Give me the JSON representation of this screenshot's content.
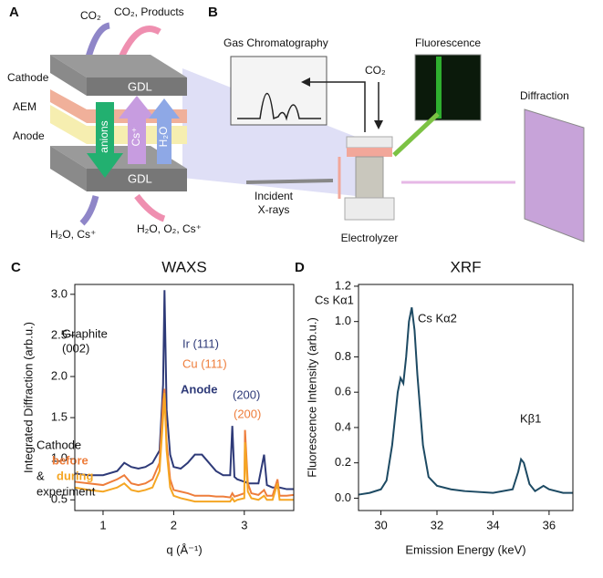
{
  "diagram_a": {
    "label": "A",
    "texts": [
      "CO₂",
      "CO₂, Products",
      "Cathode",
      "AEM",
      "Anode",
      "GDL",
      "GDL",
      "anions",
      "Cs⁺",
      "H₂O",
      "H₂O, Cs⁺",
      "H₂O, O₂, Cs⁺"
    ]
  },
  "diagram_b": {
    "label": "B",
    "texts": [
      "Gas Chromatography",
      "Fluorescence",
      "CO₂",
      "Diffraction",
      "Incident",
      "X-rays",
      "Electrolyzer"
    ]
  },
  "chart_data": [
    {
      "type": "line",
      "panel_label": "C",
      "title": "WAXS",
      "x_label": "q (Å⁻¹)",
      "y_label": "Integrated Diffraction (arb.u.)",
      "xlim": [
        0.6,
        3.7
      ],
      "xticks": [
        1,
        2,
        3
      ],
      "ylim": [
        0.37,
        3.12
      ],
      "yticks": [
        0.5,
        {
          "value": 1,
          "label": "1.0"
        },
        1.5,
        {
          "value": 2,
          "label": "2.0"
        },
        2.5,
        {
          "value": 3,
          "label": "3.0"
        }
      ],
      "x": [
        0.6,
        0.8,
        1.0,
        1.2,
        1.3,
        1.4,
        1.5,
        1.6,
        1.7,
        1.8,
        1.85,
        1.87,
        1.9,
        1.95,
        2.0,
        2.1,
        2.2,
        2.3,
        2.4,
        2.5,
        2.6,
        2.7,
        2.8,
        2.83,
        2.86,
        2.9,
        3.0,
        3.01,
        3.05,
        3.1,
        3.2,
        3.28,
        3.32,
        3.4,
        3.47,
        3.5,
        3.6,
        3.7
      ],
      "series": [
        {
          "name": "Anode",
          "color": "#2e3a78",
          "values": [
            0.82,
            0.8,
            0.8,
            0.85,
            0.95,
            0.9,
            0.88,
            0.9,
            0.95,
            1.1,
            1.9,
            3.05,
            1.6,
            1.05,
            0.9,
            0.88,
            0.95,
            1.05,
            1.05,
            0.95,
            0.85,
            0.8,
            0.8,
            1.4,
            0.78,
            0.75,
            0.72,
            0.72,
            0.7,
            0.7,
            0.7,
            1.05,
            0.68,
            0.65,
            0.65,
            0.65,
            0.63,
            0.63
          ]
        },
        {
          "name": "before",
          "color": "#ee7d3b",
          "values": [
            0.72,
            0.7,
            0.68,
            0.75,
            0.8,
            0.7,
            0.68,
            0.7,
            0.75,
            0.95,
            1.7,
            1.85,
            1.2,
            0.75,
            0.62,
            0.6,
            0.58,
            0.55,
            0.55,
            0.55,
            0.54,
            0.54,
            0.53,
            0.58,
            0.54,
            0.55,
            0.58,
            1.35,
            0.7,
            0.58,
            0.56,
            0.62,
            0.55,
            0.55,
            0.75,
            0.55,
            0.55,
            0.56
          ]
        },
        {
          "name": "during",
          "color": "#f5a623",
          "values": [
            0.65,
            0.62,
            0.6,
            0.65,
            0.7,
            0.62,
            0.6,
            0.62,
            0.65,
            0.85,
            1.5,
            1.8,
            1.1,
            0.65,
            0.55,
            0.52,
            0.5,
            0.48,
            0.48,
            0.48,
            0.48,
            0.48,
            0.48,
            0.52,
            0.48,
            0.5,
            0.52,
            1.2,
            0.6,
            0.52,
            0.5,
            0.55,
            0.5,
            0.5,
            0.7,
            0.5,
            0.5,
            0.5
          ]
        }
      ],
      "annotations": [
        "Graphite",
        "(002)",
        "Ir (111)",
        "Cu (111)",
        "(200)",
        "(200)",
        "Cathode",
        "&",
        "experiment"
      ]
    },
    {
      "type": "line",
      "panel_label": "D",
      "title": "XRF",
      "x_label": "Emission Energy (keV)",
      "y_label": "Fluorescence Intensity (arb.u.)",
      "xlim": [
        29.2,
        36.85
      ],
      "xticks": [
        30,
        32,
        34,
        36
      ],
      "ylim": [
        -0.07,
        1.21
      ],
      "yticks": [
        {
          "value": 0,
          "label": "0.0"
        },
        0.2,
        0.4,
        0.6,
        0.8,
        {
          "value": 1,
          "label": "1.0"
        },
        1.2
      ],
      "x": [
        29.2,
        29.6,
        30.0,
        30.2,
        30.4,
        30.5,
        30.6,
        30.7,
        30.8,
        30.9,
        31.0,
        31.1,
        31.2,
        31.3,
        31.5,
        31.7,
        32.0,
        32.5,
        33.0,
        34.0,
        34.7,
        34.9,
        35.0,
        35.1,
        35.3,
        35.5,
        35.8,
        36.0,
        36.5,
        36.85
      ],
      "series": [
        {
          "name": "XRF",
          "color": "#1d4a63",
          "values": [
            0.02,
            0.03,
            0.05,
            0.1,
            0.3,
            0.45,
            0.6,
            0.68,
            0.65,
            0.8,
            1.0,
            1.08,
            0.95,
            0.7,
            0.3,
            0.12,
            0.07,
            0.05,
            0.04,
            0.03,
            0.05,
            0.15,
            0.22,
            0.2,
            0.08,
            0.04,
            0.07,
            0.05,
            0.03,
            0.03
          ]
        }
      ],
      "annotations": [
        "Cs Kα1",
        "Cs Kα2",
        "Kβ1"
      ]
    }
  ]
}
